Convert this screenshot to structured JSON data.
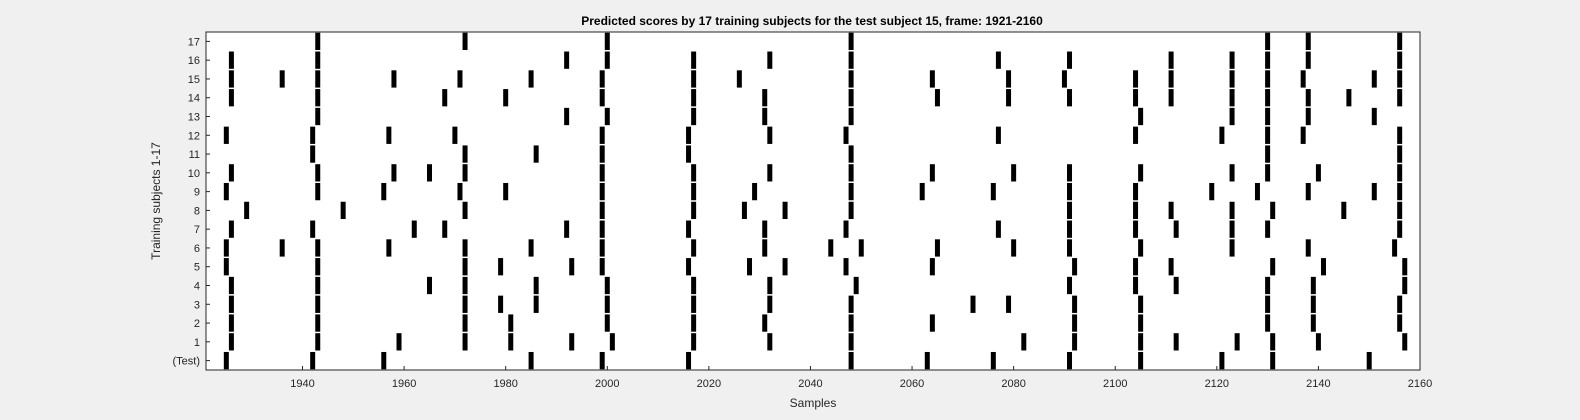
{
  "chart_data": {
    "type": "scatter",
    "title": "Predicted scores by 17 training subjects for the test subject 15, frame: 1921-2160",
    "xlabel": "Samples",
    "ylabel": "Training subjects 1-17",
    "xlim": [
      1921,
      2160
    ],
    "xticks": [
      1940,
      1960,
      1980,
      2000,
      2020,
      2040,
      2060,
      2080,
      2100,
      2120,
      2140,
      2160
    ],
    "rows": [
      "(Test)",
      "1",
      "2",
      "3",
      "4",
      "5",
      "6",
      "7",
      "8",
      "9",
      "10",
      "11",
      "12",
      "13",
      "14",
      "15",
      "16",
      "17"
    ],
    "marker": "vertical-bar",
    "marker_color": "#000000",
    "background": "#ffffff",
    "grid": false,
    "series": [
      {
        "label": "(Test)",
        "x": [
          1925,
          1942,
          1956,
          1985,
          1999,
          2016,
          2048,
          2063,
          2076,
          2091,
          2105,
          2121,
          2131,
          2150
        ]
      },
      {
        "label": "1",
        "x": [
          1926,
          1943,
          1959,
          1972,
          1981,
          1993,
          2001,
          2017,
          2032,
          2048,
          2082,
          2092,
          2105,
          2112,
          2124,
          2131,
          2140,
          2157
        ]
      },
      {
        "label": "2",
        "x": [
          1926,
          1943,
          1972,
          1981,
          2000,
          2017,
          2031,
          2048,
          2064,
          2092,
          2105,
          2130,
          2139,
          2156
        ]
      },
      {
        "label": "3",
        "x": [
          1926,
          1943,
          1972,
          1979,
          1986,
          2000,
          2017,
          2032,
          2048,
          2072,
          2079,
          2092,
          2105,
          2130,
          2139,
          2156
        ]
      },
      {
        "label": "4",
        "x": [
          1926,
          1943,
          1965,
          1972,
          1986,
          2000,
          2017,
          2032,
          2049,
          2091,
          2104,
          2112,
          2130,
          2139,
          2157
        ]
      },
      {
        "label": "5",
        "x": [
          1925,
          1943,
          1972,
          1979,
          1993,
          1999,
          2016,
          2028,
          2035,
          2047,
          2064,
          2092,
          2104,
          2111,
          2131,
          2141,
          2157
        ]
      },
      {
        "label": "6",
        "x": [
          1925,
          1936,
          1943,
          1957,
          1972,
          1985,
          1999,
          2017,
          2031,
          2044,
          2050,
          2065,
          2080,
          2091,
          2105,
          2123,
          2138,
          2155
        ]
      },
      {
        "label": "7",
        "x": [
          1926,
          1942,
          1962,
          1968,
          1992,
          1999,
          2016,
          2031,
          2047,
          2077,
          2091,
          2104,
          2112,
          2123,
          2130,
          2156
        ]
      },
      {
        "label": "8",
        "x": [
          1929,
          1948,
          1972,
          1999,
          2017,
          2027,
          2035,
          2048,
          2091,
          2104,
          2111,
          2123,
          2131,
          2145,
          2156
        ]
      },
      {
        "label": "9",
        "x": [
          1925,
          1943,
          1956,
          1971,
          1980,
          1999,
          2017,
          2029,
          2048,
          2062,
          2076,
          2091,
          2104,
          2119,
          2128,
          2138,
          2151,
          2156
        ]
      },
      {
        "label": "10",
        "x": [
          1926,
          1943,
          1958,
          1965,
          1972,
          1999,
          2017,
          2032,
          2048,
          2064,
          2080,
          2091,
          2105,
          2123,
          2130,
          2140,
          2156
        ]
      },
      {
        "label": "11",
        "x": [
          1942,
          1972,
          1986,
          1999,
          2016,
          2048,
          2130,
          2156
        ]
      },
      {
        "label": "12",
        "x": [
          1925,
          1942,
          1957,
          1970,
          1999,
          2016,
          2032,
          2047,
          2077,
          2104,
          2121,
          2130,
          2137,
          2156
        ]
      },
      {
        "label": "13",
        "x": [
          1943,
          1992,
          2000,
          2017,
          2031,
          2048,
          2105,
          2123,
          2130,
          2138,
          2151
        ]
      },
      {
        "label": "14",
        "x": [
          1926,
          1943,
          1968,
          1980,
          1999,
          2017,
          2031,
          2048,
          2065,
          2079,
          2091,
          2104,
          2111,
          2123,
          2130,
          2138,
          2146,
          2156
        ]
      },
      {
        "label": "15",
        "x": [
          1926,
          1936,
          1943,
          1958,
          1971,
          1985,
          1999,
          2017,
          2026,
          2048,
          2064,
          2079,
          2090,
          2104,
          2111,
          2123,
          2130,
          2137,
          2151,
          2156
        ]
      },
      {
        "label": "16",
        "x": [
          1926,
          1943,
          1992,
          2000,
          2017,
          2032,
          2048,
          2077,
          2091,
          2111,
          2123,
          2130,
          2138,
          2156
        ]
      },
      {
        "label": "17",
        "x": [
          1943,
          1972,
          2000,
          2048,
          2130,
          2138,
          2156
        ]
      }
    ]
  }
}
